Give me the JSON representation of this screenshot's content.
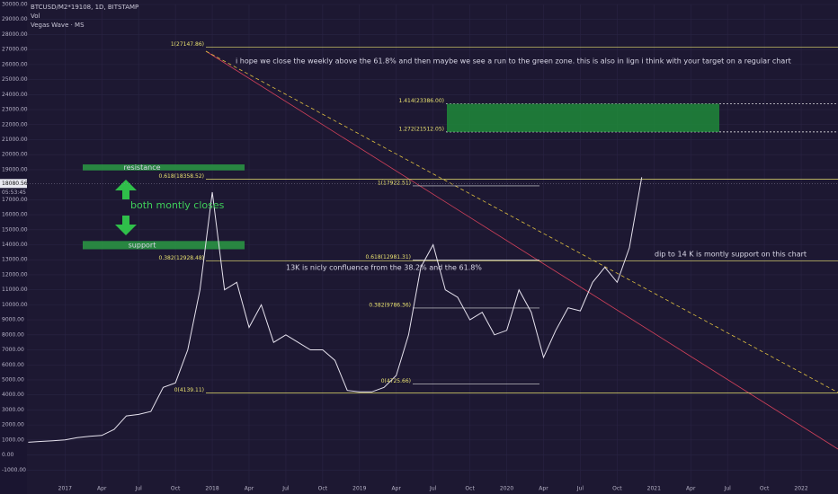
{
  "chart_data": {
    "type": "line",
    "symbol": "BTCUSD/M2*19108, 1D, BITSTAMP",
    "volume_label": "Vol",
    "indicator": "Vegas Wave · MS",
    "last_price": 18080.56,
    "countdown": "05:53:45",
    "color": "#e6e2ee",
    "x": [
      -3,
      -2,
      -1,
      0,
      1,
      2,
      3,
      4,
      5,
      6,
      7,
      8,
      9,
      10,
      11,
      12,
      13,
      14,
      15,
      16,
      17,
      18,
      19,
      20,
      21,
      22,
      23,
      24,
      25,
      26,
      27,
      28,
      29,
      30,
      31,
      32,
      33,
      34,
      35,
      36,
      37,
      38,
      39,
      40,
      41,
      42,
      43,
      44,
      45,
      46,
      47
    ],
    "values": [
      850,
      900,
      950,
      1000,
      1150,
      1250,
      1300,
      1700,
      2600,
      2700,
      2900,
      4500,
      4800,
      7000,
      11000,
      17500,
      11000,
      11500,
      8500,
      10000,
      7500,
      8000,
      7500,
      7000,
      7000,
      6300,
      4300,
      4200,
      4200,
      4500,
      5300,
      8000,
      12500,
      14000,
      11000,
      10500,
      9000,
      9500,
      8000,
      8300,
      11000,
      9500,
      6500,
      8300,
      9800,
      9600,
      11500,
      12500,
      11500,
      13800,
      18500
    ],
    "xlim": [
      -3.1,
      63
    ],
    "xticks": [
      {
        "value": 0,
        "label": "2017"
      },
      {
        "value": 3,
        "label": "Apr"
      },
      {
        "value": 6,
        "label": "Jul"
      },
      {
        "value": 9,
        "label": "Oct"
      },
      {
        "value": 12,
        "label": "2018"
      },
      {
        "value": 15,
        "label": "Apr"
      },
      {
        "value": 18,
        "label": "Jul"
      },
      {
        "value": 21,
        "label": "Oct"
      },
      {
        "value": 24,
        "label": "2019"
      },
      {
        "value": 27,
        "label": "Apr"
      },
      {
        "value": 30,
        "label": "Jul"
      },
      {
        "value": 33,
        "label": "Oct"
      },
      {
        "value": 36,
        "label": "2020"
      },
      {
        "value": 39,
        "label": "Apr"
      },
      {
        "value": 42,
        "label": "Jul"
      },
      {
        "value": 45,
        "label": "Oct"
      },
      {
        "value": 48,
        "label": "2021"
      },
      {
        "value": 51,
        "label": "Apr"
      },
      {
        "value": 54,
        "label": "Jul"
      },
      {
        "value": 57,
        "label": "Oct"
      },
      {
        "value": 60,
        "label": "2022"
      }
    ],
    "ylim": [
      -2000,
      30000
    ],
    "yticks": [
      {
        "value": 30000,
        "label": "30000.00"
      },
      {
        "value": 29000,
        "label": "29000.00"
      },
      {
        "value": 28000,
        "label": "28000.00"
      },
      {
        "value": 27000,
        "label": "27000.00"
      },
      {
        "value": 26000,
        "label": "26000.00"
      },
      {
        "value": 25000,
        "label": "25000.00"
      },
      {
        "value": 24000,
        "label": "24000.00"
      },
      {
        "value": 23000,
        "label": "23000.00"
      },
      {
        "value": 22000,
        "label": "22000.00"
      },
      {
        "value": 21000,
        "label": "21000.00"
      },
      {
        "value": 20000,
        "label": "20000.00"
      },
      {
        "value": 19000,
        "label": "19000.00"
      },
      {
        "value": 17000,
        "label": "17000.00"
      },
      {
        "value": 16000,
        "label": "16000.00"
      },
      {
        "value": 15000,
        "label": "15000.00"
      },
      {
        "value": 14000,
        "label": "14000.00"
      },
      {
        "value": 13000,
        "label": "13000.00"
      },
      {
        "value": 12000,
        "label": "12000.00"
      },
      {
        "value": 11000,
        "label": "11000.00"
      },
      {
        "value": 10000,
        "label": "10000.00"
      },
      {
        "value": 9000,
        "label": "9000.00"
      },
      {
        "value": 8000,
        "label": "8000.00"
      },
      {
        "value": 7000,
        "label": "7000.00"
      },
      {
        "value": 6000,
        "label": "6000.00"
      },
      {
        "value": 5000,
        "label": "5000.00"
      },
      {
        "value": 4000,
        "label": "4000.00"
      },
      {
        "value": 3000,
        "label": "3000.00"
      },
      {
        "value": 2000,
        "label": "2000.00"
      },
      {
        "value": 1000,
        "label": "1000.00"
      },
      {
        "value": 0,
        "label": "0.00"
      },
      {
        "value": -1000,
        "label": "-1000.00"
      }
    ],
    "grid": true,
    "levels": [
      {
        "value": 27147.86,
        "label": "1(27147.86)"
      },
      {
        "value": 18358.52,
        "label": "0.618(18358.52)"
      },
      {
        "value": 12928.48,
        "label": "0.382(12928.48)"
      },
      {
        "value": 4139.11,
        "label": "0(4139.11)"
      },
      {
        "value": 23386,
        "label": "1.414(23386.00)"
      },
      {
        "value": 21512.05,
        "label": "1.272(21512.05)"
      },
      {
        "value": 17922.51,
        "label": "1(17922.51)"
      },
      {
        "value": 12981.31,
        "label": "0.618(12981.31)"
      },
      {
        "value": 9786.36,
        "label": "0.382(9786.36)"
      },
      {
        "value": 4725.66,
        "label": "0(4725.66)"
      }
    ],
    "zones": [
      {
        "label": "resistance",
        "range": [
          18950,
          19350
        ]
      },
      {
        "label": "support",
        "range": [
          13700,
          14250
        ]
      }
    ],
    "notes": [
      "i hope we close the weekly above the 61.8% and then maybe we see a run to the green zone. this is also in lign i think with your target on a regular chart",
      "13K is nicly confluence from the 38.2% and the 61.8%",
      "dip to 14 K is montly support on this chart",
      "both montly closes"
    ]
  }
}
